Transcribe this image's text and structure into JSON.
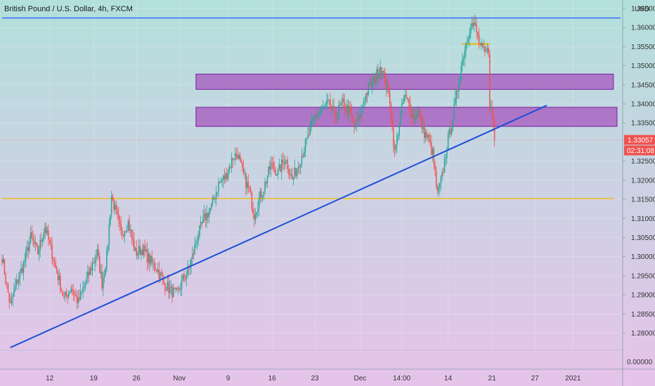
{
  "header": {
    "title": "British Pound / U.S. Dollar, 4h, FXCM",
    "currency": "USD"
  },
  "price_badges": {
    "last_price": "1.33057",
    "countdown": "02:31:08"
  },
  "colors": {
    "bull": "#26a69a",
    "bear": "#ef5350",
    "trendline": "#1e4fd8",
    "resistance_line": "#2962ff",
    "support_line": "#f5b400",
    "zone_fill": "#9c27b0",
    "zone_stroke": "#7b1fa2",
    "badge": "#ef5350",
    "bg_top": "#b2dfdb",
    "bg_bottom": "#e1bee7"
  },
  "chart_data": {
    "type": "candlestick",
    "title": "British Pound / U.S. Dollar, 4h, FXCM",
    "ylim": [
      1.2755,
      1.3672
    ],
    "y_ticks": [
      1.365,
      1.36,
      1.355,
      1.35,
      1.345,
      1.34,
      1.335,
      1.325,
      1.32,
      1.315,
      1.31,
      1.305,
      1.3,
      1.295,
      1.29,
      1.285,
      1.28
    ],
    "y_tick_labels": [
      "1.36500",
      "1.36000",
      "1.35500",
      "1.35000",
      "1.34500",
      "1.34000",
      "1.33500",
      "1.32500",
      "1.32000",
      "1.31500",
      "1.31000",
      "1.30500",
      "1.30000",
      "1.29500",
      "1.29000",
      "1.28500",
      "1.28000"
    ],
    "volume_axis_label": "0.00000",
    "x_ticks": [
      {
        "label": "12",
        "index": 40
      },
      {
        "label": "19",
        "index": 77
      },
      {
        "label": "26",
        "index": 113
      },
      {
        "label": "Nov",
        "index": 149
      },
      {
        "label": "9",
        "index": 190
      },
      {
        "label": "16",
        "index": 227
      },
      {
        "label": "23",
        "index": 263
      },
      {
        "label": "Dec",
        "index": 301
      },
      {
        "label": "14:00",
        "index": 336
      },
      {
        "label": "14",
        "index": 375
      },
      {
        "label": "21",
        "index": 412
      },
      {
        "label": "27",
        "index": 448
      },
      {
        "label": "2021",
        "index": 480
      }
    ],
    "n_slots": 520,
    "waypoints": [
      [
        0,
        1.3
      ],
      [
        3,
        1.294
      ],
      [
        7,
        1.287
      ],
      [
        12,
        1.293
      ],
      [
        18,
        1.298
      ],
      [
        24,
        1.305
      ],
      [
        30,
        1.301
      ],
      [
        36,
        1.308
      ],
      [
        40,
        1.303
      ],
      [
        46,
        1.296
      ],
      [
        52,
        1.289
      ],
      [
        58,
        1.292
      ],
      [
        64,
        1.288
      ],
      [
        70,
        1.293
      ],
      [
        76,
        1.298
      ],
      [
        80,
        1.301
      ],
      [
        84,
        1.293
      ],
      [
        88,
        1.3
      ],
      [
        92,
        1.316
      ],
      [
        96,
        1.311
      ],
      [
        100,
        1.306
      ],
      [
        106,
        1.309
      ],
      [
        112,
        1.301
      ],
      [
        118,
        1.302
      ],
      [
        124,
        1.299
      ],
      [
        130,
        1.297
      ],
      [
        136,
        1.293
      ],
      [
        142,
        1.291
      ],
      [
        147,
        1.29
      ],
      [
        152,
        1.294
      ],
      [
        156,
        1.296
      ],
      [
        160,
        1.3
      ],
      [
        164,
        1.305
      ],
      [
        170,
        1.31
      ],
      [
        176,
        1.313
      ],
      [
        182,
        1.319
      ],
      [
        188,
        1.321
      ],
      [
        194,
        1.326
      ],
      [
        198,
        1.327
      ],
      [
        202,
        1.322
      ],
      [
        208,
        1.317
      ],
      [
        212,
        1.311
      ],
      [
        216,
        1.315
      ],
      [
        220,
        1.318
      ],
      [
        226,
        1.324
      ],
      [
        232,
        1.322
      ],
      [
        238,
        1.326
      ],
      [
        244,
        1.32
      ],
      [
        250,
        1.325
      ],
      [
        256,
        1.33
      ],
      [
        262,
        1.336
      ],
      [
        268,
        1.338
      ],
      [
        274,
        1.34
      ],
      [
        280,
        1.337
      ],
      [
        286,
        1.34
      ],
      [
        292,
        1.338
      ],
      [
        296,
        1.334
      ],
      [
        300,
        1.336
      ],
      [
        304,
        1.341
      ],
      [
        308,
        1.344
      ],
      [
        314,
        1.347
      ],
      [
        318,
        1.35
      ],
      [
        322,
        1.346
      ],
      [
        326,
        1.341
      ],
      [
        330,
        1.327
      ],
      [
        334,
        1.335
      ],
      [
        338,
        1.342
      ],
      [
        342,
        1.34
      ],
      [
        346,
        1.336
      ],
      [
        350,
        1.338
      ],
      [
        354,
        1.333
      ],
      [
        358,
        1.331
      ],
      [
        362,
        1.327
      ],
      [
        366,
        1.316
      ],
      [
        370,
        1.321
      ],
      [
        374,
        1.329
      ],
      [
        378,
        1.335
      ],
      [
        382,
        1.342
      ],
      [
        386,
        1.35
      ],
      [
        390,
        1.356
      ],
      [
        394,
        1.361
      ],
      [
        398,
        1.36
      ],
      [
        402,
        1.355
      ],
      [
        406,
        1.353
      ],
      [
        409,
        1.354
      ],
      [
        410,
        1.34
      ],
      [
        413,
        1.335
      ],
      [
        414,
        1.331
      ]
    ],
    "trendline": {
      "p1": {
        "index": 7,
        "price": 1.2762
      },
      "p2": {
        "index": 458,
        "price": 1.3396
      }
    },
    "horizontal_lines": [
      {
        "name": "resistance",
        "price": 1.3625,
        "from": 0,
        "to": 520
      },
      {
        "name": "support",
        "price": 1.3152,
        "from": 0,
        "to": 515
      },
      {
        "name": "top-marker",
        "price": 1.3557,
        "from": 387,
        "to": 410
      }
    ],
    "zones": [
      {
        "name": "upper-zone",
        "from": 163,
        "to": 514,
        "top": 1.3478,
        "bottom": 1.3438
      },
      {
        "name": "lower-zone",
        "from": 163,
        "to": 520,
        "top": 1.3391,
        "bottom": 1.3341
      }
    ],
    "last_price": 1.33057
  }
}
